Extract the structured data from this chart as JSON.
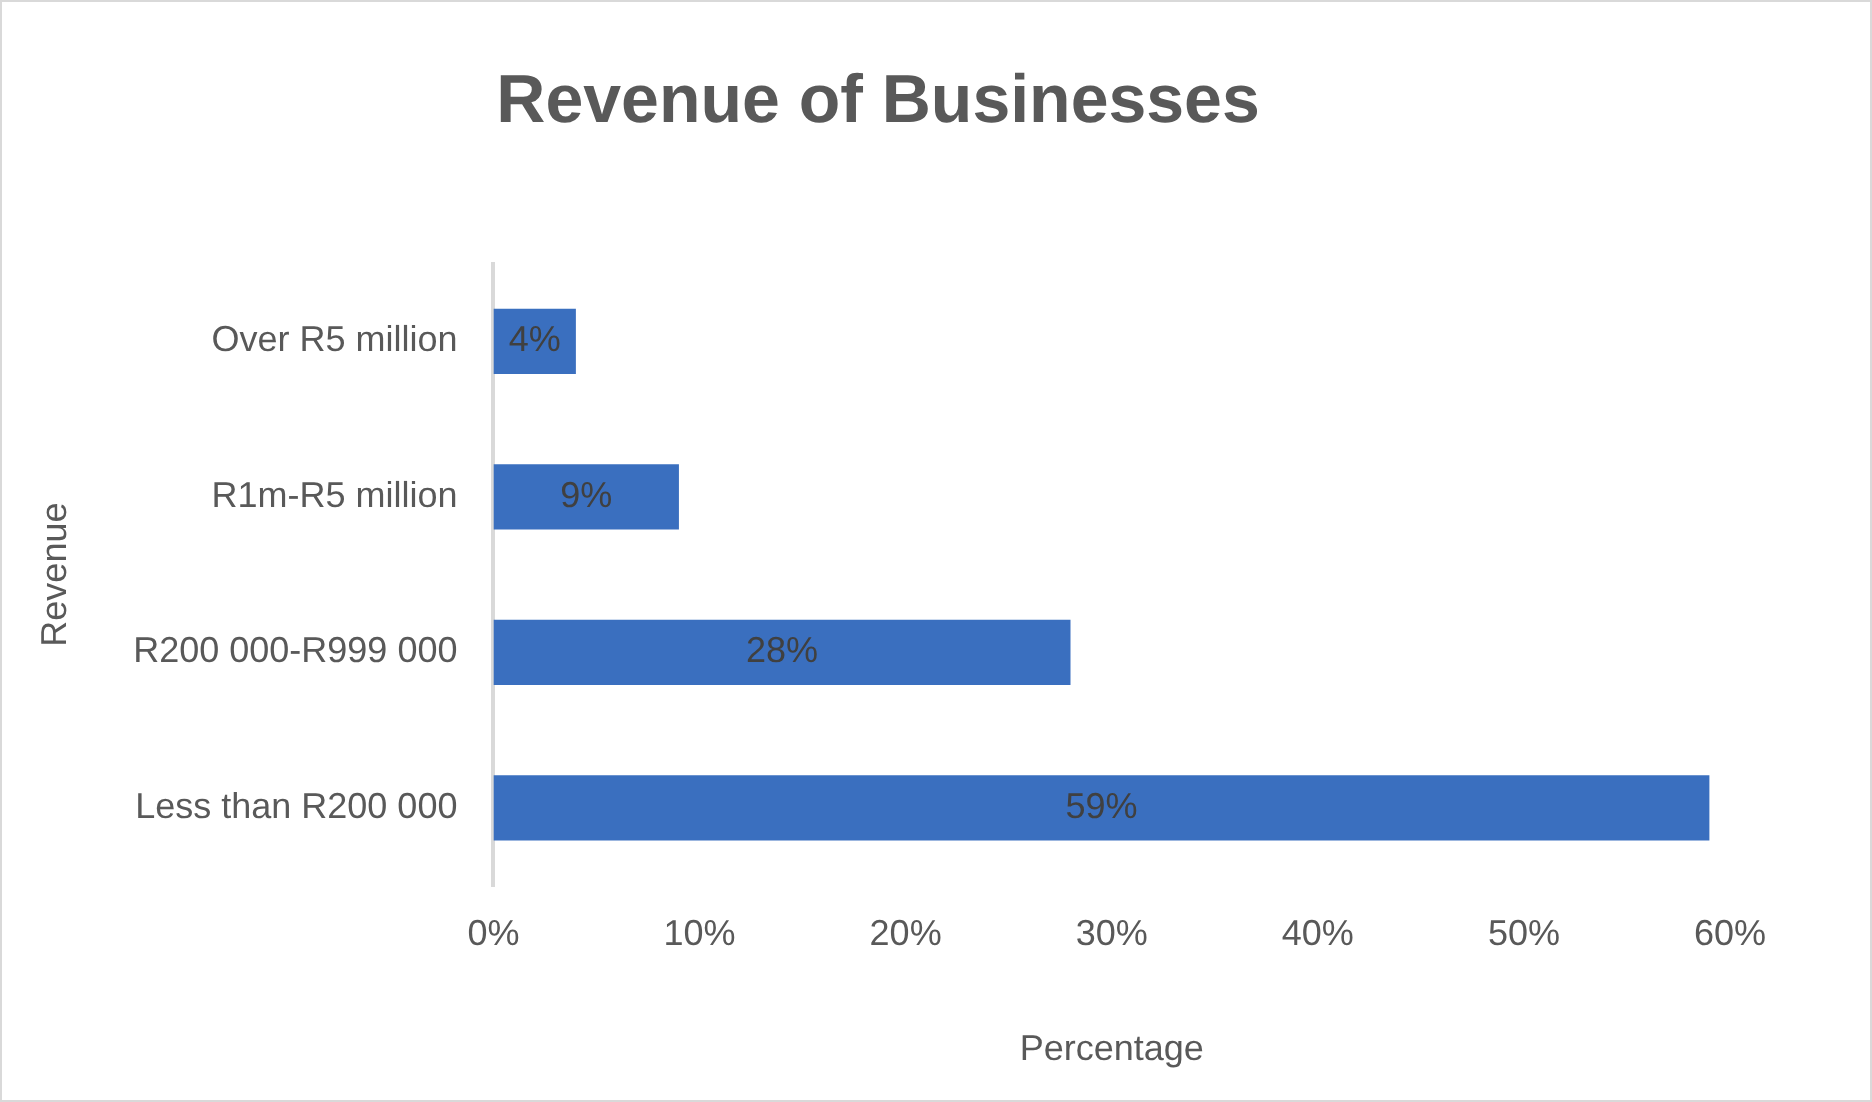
{
  "chart_data": {
    "type": "bar",
    "title": "Revenue of Businesses",
    "xlabel": "Percentage",
    "ylabel": "Revenue",
    "orientation": "horizontal",
    "categories": [
      "Over R5 million",
      "R1m-R5 million",
      "R200 000-R999 000",
      "Less than R200 000"
    ],
    "values": [
      4,
      9,
      28,
      59
    ],
    "value_labels": [
      "4%",
      "9%",
      "28%",
      "59%"
    ],
    "color": "#3a6fbf",
    "xlim": [
      0,
      60
    ],
    "xticks": [
      {
        "value": 0,
        "label": "0%"
      },
      {
        "value": 10,
        "label": "10%"
      },
      {
        "value": 20,
        "label": "20%"
      },
      {
        "value": 30,
        "label": "30%"
      },
      {
        "value": 40,
        "label": "40%"
      },
      {
        "value": 50,
        "label": "50%"
      },
      {
        "value": 60,
        "label": "60%"
      }
    ],
    "grid": false,
    "legend": false
  }
}
